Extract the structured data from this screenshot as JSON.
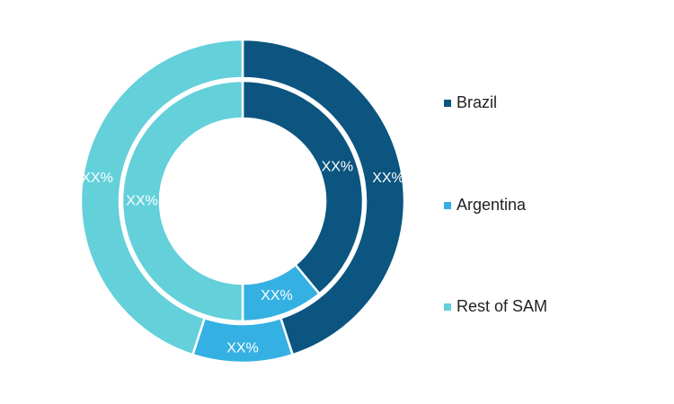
{
  "chart_data": {
    "type": "pie",
    "variant": "double-donut",
    "categories": [
      "Brazil",
      "Argentina",
      "Rest of SAM"
    ],
    "colors": [
      "#0b5580",
      "#35b0e3",
      "#63d0da"
    ],
    "series": [
      {
        "values": [
          45,
          10,
          45
        ],
        "labels": [
          "XX%",
          "XX%",
          "XX%"
        ]
      },
      {
        "values": [
          39,
          11,
          50
        ],
        "labels": [
          "XX%",
          "XX%",
          "XX%"
        ]
      }
    ],
    "legend_position": "right"
  }
}
